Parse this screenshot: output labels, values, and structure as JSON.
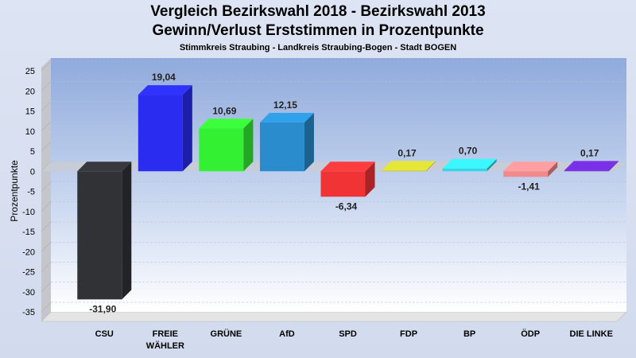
{
  "title": "Vergleich Bezirkswahl 2018 - Bezirkswahl 2013",
  "title2": "Gewinn/Verlust Erststimmen in Prozentpunkte",
  "subtitle": "Stimmkreis Straubing - Landkreis Straubing-Bogen - Stadt BOGEN",
  "chart_data": {
    "type": "bar",
    "title": "Vergleich Bezirkswahl 2018 - Bezirkswahl 2013",
    "subtitle": "Gewinn/Verlust Erststimmen in Prozentpunkte",
    "ylabel": "Prozentpunkte",
    "ylim": [
      -35,
      25
    ],
    "yticks": [
      25,
      20,
      15,
      10,
      5,
      0,
      -5,
      -10,
      -15,
      -20,
      -25,
      -30,
      -35
    ],
    "grid": true,
    "categories": [
      [
        "CSU"
      ],
      [
        "FREIE",
        "WÄHLER"
      ],
      [
        "GRÜNE"
      ],
      [
        "AfD"
      ],
      [
        "SPD"
      ],
      [
        "FDP"
      ],
      [
        "BP"
      ],
      [
        "ÖDP"
      ],
      [
        "DIE LINKE"
      ]
    ],
    "values": [
      -31.9,
      19.04,
      10.69,
      12.15,
      -6.34,
      0.17,
      0.7,
      -1.41,
      0.17
    ],
    "labels": [
      "-31,90",
      "19,04",
      "10,69",
      "12,15",
      "-6,34",
      "0,17",
      "0,70",
      "-1,41",
      "0,17"
    ],
    "colors": [
      "#303236",
      "#2a2cf0",
      "#33f033",
      "#2a8ccc",
      "#f03436",
      "#c8c830",
      "#33d8e8",
      "#f08a8c",
      "#6a2ac8"
    ]
  }
}
